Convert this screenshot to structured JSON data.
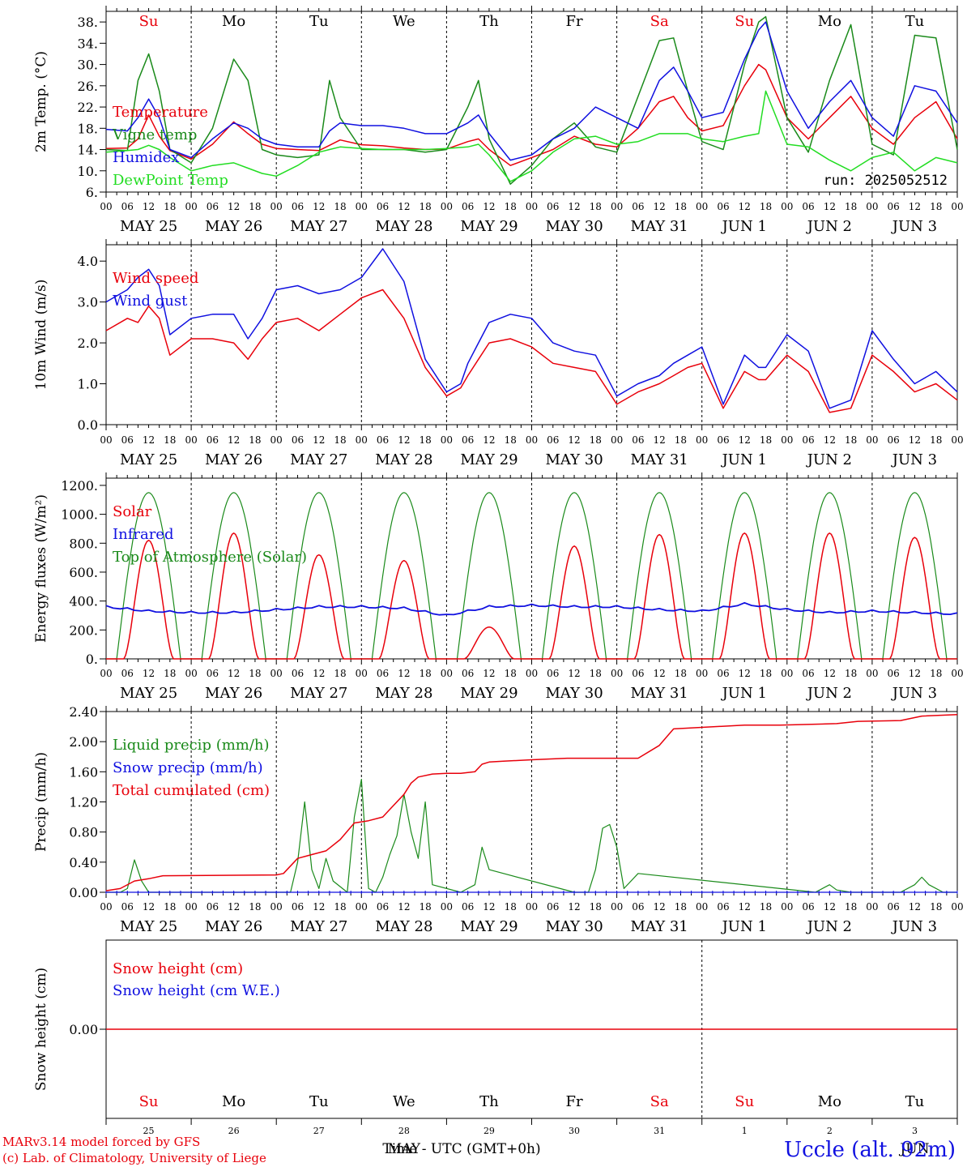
{
  "day_abbr": [
    "Su",
    "Mo",
    "Tu",
    "We",
    "Th",
    "Fr",
    "Sa",
    "Su",
    "Mo",
    "Tu"
  ],
  "day_abbr_colors": [
    "#e8000b",
    "#000000",
    "#000000",
    "#000000",
    "#000000",
    "#000000",
    "#e8000b",
    "#e8000b",
    "#000000",
    "#000000"
  ],
  "date_labels": [
    "MAY 25",
    "MAY 26",
    "MAY 27",
    "MAY 28",
    "MAY 29",
    "MAY 30",
    "MAY 31",
    "JUN  1",
    "JUN  2",
    "JUN  3"
  ],
  "hour_labels": [
    "00",
    "06",
    "12",
    "18"
  ],
  "hour_label_end": "00",
  "bottom_day_numbers": [
    "25",
    "26",
    "27",
    "28",
    "29",
    "30",
    "31",
    "1",
    "2",
    "3"
  ],
  "bottom_month_labels": {
    "may": "MAY",
    "jun": "JUN"
  },
  "xaxis_title": "Time - UTC (GMT+0h)",
  "footer": {
    "line1": "MARv3.14 model forced by GFS",
    "line2": "(c) Lab. of Climatology, University of Liege",
    "station": "Uccle (alt. 92m)"
  },
  "colors": {
    "red": "#e8000b",
    "green": "#1a8a1a",
    "blue": "#1010e0",
    "lightgreen": "#22dd22",
    "black": "#000000"
  },
  "chart_data": [
    {
      "type": "line",
      "ylabel": "2m Temp. (°C)",
      "ylim": [
        6,
        40
      ],
      "yticks": [
        6,
        10,
        14,
        18,
        22,
        26,
        30,
        34,
        38
      ],
      "ytick_labels": [
        "6.",
        "10.",
        "14.",
        "18.",
        "22.",
        "26.",
        "30.",
        "34.",
        "38."
      ],
      "run_label": "run: 2025052512",
      "x": [
        0,
        6,
        9,
        12,
        15,
        18,
        24,
        30,
        36,
        40,
        44,
        48,
        54,
        60,
        63,
        66,
        72,
        78,
        84,
        90,
        96,
        102,
        105,
        108,
        114,
        120,
        126,
        132,
        138,
        144,
        150,
        156,
        160,
        164,
        168,
        174,
        180,
        184,
        186,
        192,
        198,
        204,
        210,
        216,
        222,
        228,
        234,
        240
      ],
      "series": [
        {
          "name": "Temperature",
          "color": "#e8000b",
          "values": [
            14.2,
            14.3,
            16.0,
            20.5,
            16.5,
            13.8,
            12.2,
            15.0,
            19.2,
            17.0,
            15.0,
            14.2,
            14.0,
            13.8,
            14.8,
            15.8,
            14.9,
            14.7,
            14.3,
            14.0,
            14.1,
            15.5,
            16.0,
            14.0,
            11.0,
            12.5,
            14.0,
            16.5,
            15.0,
            14.5,
            18.0,
            23.0,
            24.0,
            20.0,
            17.5,
            18.5,
            26.0,
            30.0,
            29.0,
            20.0,
            16.0,
            20.0,
            24.0,
            18.0,
            15.0,
            20.0,
            23.0,
            16.0
          ]
        },
        {
          "name": "Vigne temp",
          "color": "#1a8a1a",
          "values": [
            14.0,
            13.8,
            27.0,
            32.0,
            25.0,
            14.0,
            11.5,
            18.0,
            31.0,
            27.0,
            14.0,
            13.0,
            12.5,
            13.0,
            27.0,
            20.0,
            14.0,
            14.0,
            14.0,
            13.5,
            14.0,
            22.0,
            27.0,
            16.0,
            7.5,
            11.0,
            16.0,
            19.0,
            14.5,
            13.5,
            24.0,
            34.5,
            35.0,
            25.0,
            15.5,
            14.0,
            30.0,
            38.0,
            39.0,
            20.0,
            13.5,
            27.0,
            37.5,
            15.0,
            13.0,
            35.5,
            35.0,
            14.0
          ]
        },
        {
          "name": "Humidex",
          "color": "#1010e0",
          "values": [
            17.8,
            17.5,
            20.0,
            23.5,
            20.0,
            14.0,
            12.5,
            16.0,
            19.0,
            18.0,
            16.0,
            15.0,
            14.5,
            14.5,
            17.5,
            19.0,
            18.5,
            18.5,
            18.0,
            17.0,
            17.0,
            19.0,
            20.5,
            17.0,
            12.0,
            13.0,
            16.0,
            18.0,
            22.0,
            20.0,
            18.0,
            27.0,
            29.5,
            25.0,
            20.0,
            21.0,
            31.0,
            36.5,
            38.0,
            25.0,
            18.0,
            23.0,
            27.0,
            20.0,
            16.5,
            26.0,
            25.0,
            19.0
          ]
        },
        {
          "name": "DewPoint Temp",
          "color": "#22dd22",
          "values": [
            13.5,
            13.8,
            14.0,
            14.8,
            14.0,
            12.5,
            10.0,
            11.0,
            11.5,
            10.5,
            9.5,
            9.0,
            11.0,
            13.5,
            14.0,
            14.5,
            14.2,
            14.0,
            14.0,
            14.0,
            14.2,
            14.5,
            15.0,
            13.0,
            8.0,
            10.0,
            13.5,
            16.0,
            16.5,
            15.0,
            15.5,
            17.0,
            17.0,
            17.0,
            16.0,
            15.5,
            16.5,
            17.0,
            25.0,
            15.0,
            14.5,
            12.0,
            10.0,
            12.5,
            13.5,
            10.0,
            12.5,
            11.5
          ]
        }
      ]
    },
    {
      "type": "line",
      "ylabel": "10m Wind (m/s)",
      "ylim": [
        0,
        4.4
      ],
      "yticks": [
        0,
        1,
        2,
        3,
        4
      ],
      "ytick_labels": [
        "0.0",
        "1.0",
        "2.0",
        "3.0",
        "4.0"
      ],
      "x": [
        0,
        6,
        9,
        12,
        15,
        18,
        24,
        30,
        36,
        40,
        44,
        48,
        54,
        60,
        66,
        72,
        78,
        84,
        90,
        96,
        100,
        102,
        105,
        108,
        114,
        120,
        126,
        132,
        138,
        144,
        150,
        156,
        160,
        164,
        168,
        174,
        180,
        184,
        186,
        192,
        198,
        204,
        210,
        216,
        222,
        228,
        234,
        240
      ],
      "series": [
        {
          "name": "Wind speed",
          "color": "#e8000b",
          "values": [
            2.3,
            2.6,
            2.5,
            2.9,
            2.6,
            1.7,
            2.1,
            2.1,
            2.0,
            1.6,
            2.1,
            2.5,
            2.6,
            2.3,
            2.7,
            3.1,
            3.3,
            2.6,
            1.4,
            0.7,
            0.9,
            1.2,
            1.6,
            2.0,
            2.1,
            1.9,
            1.5,
            1.4,
            1.3,
            0.5,
            0.8,
            1.0,
            1.2,
            1.4,
            1.5,
            0.4,
            1.3,
            1.1,
            1.1,
            1.7,
            1.3,
            0.3,
            0.4,
            1.7,
            1.3,
            0.8,
            1.0,
            0.6
          ]
        },
        {
          "name": "Wind gust",
          "color": "#1010e0",
          "values": [
            3.0,
            3.3,
            3.6,
            3.8,
            3.4,
            2.2,
            2.6,
            2.7,
            2.7,
            2.1,
            2.6,
            3.3,
            3.4,
            3.2,
            3.3,
            3.6,
            4.3,
            3.5,
            1.6,
            0.8,
            1.0,
            1.5,
            2.0,
            2.5,
            2.7,
            2.6,
            2.0,
            1.8,
            1.7,
            0.7,
            1.0,
            1.2,
            1.5,
            1.7,
            1.9,
            0.5,
            1.7,
            1.4,
            1.4,
            2.2,
            1.8,
            0.4,
            0.6,
            2.3,
            1.6,
            1.0,
            1.3,
            0.8
          ]
        }
      ]
    },
    {
      "type": "line",
      "ylabel": "Energy fluxes (W/m²)",
      "ylim": [
        0,
        1250
      ],
      "yticks": [
        0,
        200,
        400,
        600,
        800,
        1000,
        1200
      ],
      "ytick_labels": [
        "0.",
        "200.",
        "400.",
        "600.",
        "800.",
        "1000.",
        "1200."
      ],
      "solar_day_peaks": [
        820,
        870,
        720,
        680,
        220,
        780,
        860,
        870,
        870,
        840
      ],
      "toa_peak": 1150,
      "series": [
        {
          "name": "Solar",
          "color": "#e8000b"
        },
        {
          "name": "Infrared",
          "color": "#1010e0",
          "x": [
            0,
            12,
            24,
            36,
            48,
            60,
            72,
            84,
            96,
            108,
            120,
            132,
            144,
            156,
            168,
            180,
            192,
            204,
            216,
            228,
            240
          ],
          "values": [
            360,
            330,
            320,
            320,
            340,
            360,
            360,
            350,
            300,
            360,
            370,
            360,
            360,
            340,
            330,
            380,
            340,
            320,
            330,
            320,
            310
          ]
        },
        {
          "name": "Top of Atmosphere (Solar)",
          "color": "#1a8a1a"
        }
      ]
    },
    {
      "type": "line",
      "ylabel": "Precip (mm/h)",
      "ylim": [
        0,
        2.4
      ],
      "yticks": [
        0,
        0.4,
        0.8,
        1.2,
        1.6,
        2.0,
        2.4
      ],
      "ytick_labels": [
        "0.00",
        "0.40",
        "0.80",
        "1.20",
        "1.60",
        "2.00",
        "2.40"
      ],
      "series": [
        {
          "name": "Liquid precip (mm/h)",
          "color": "#1a8a1a",
          "x": [
            0,
            4,
            6,
            8,
            10,
            12,
            14,
            48,
            52,
            54,
            56,
            58,
            60,
            62,
            64,
            68,
            70,
            72,
            74,
            76,
            78,
            80,
            82,
            84,
            86,
            88,
            90,
            92,
            100,
            104,
            106,
            108,
            132,
            136,
            138,
            140,
            142,
            144,
            146,
            150,
            200,
            204,
            206,
            210,
            224,
            228,
            230,
            232,
            236,
            240
          ],
          "values": [
            0,
            0,
            0.05,
            0.43,
            0.15,
            0,
            0,
            0,
            0,
            0.4,
            1.2,
            0.3,
            0.05,
            0.45,
            0.15,
            0,
            1.0,
            1.5,
            0.05,
            0,
            0.2,
            0.5,
            0.75,
            1.3,
            0.8,
            0.45,
            1.2,
            0.1,
            0,
            0.1,
            0.6,
            0.3,
            0,
            0,
            0.3,
            0.85,
            0.9,
            0.6,
            0.05,
            0.25,
            0,
            0.1,
            0.03,
            0,
            0,
            0.1,
            0.2,
            0.1,
            0,
            0
          ]
        },
        {
          "name": "Snow precip (mm/h)",
          "color": "#1010e0",
          "x": [
            0,
            240
          ],
          "values": [
            0,
            0
          ]
        },
        {
          "name": "Total cumulated (cm)",
          "color": "#e8000b",
          "x": [
            0,
            4,
            8,
            12,
            16,
            48,
            50,
            54,
            58,
            62,
            66,
            70,
            74,
            78,
            80,
            84,
            86,
            88,
            92,
            96,
            100,
            104,
            106,
            108,
            112,
            120,
            130,
            150,
            156,
            160,
            180,
            190,
            206,
            212,
            224,
            230,
            240
          ],
          "values": [
            0.02,
            0.05,
            0.15,
            0.18,
            0.22,
            0.23,
            0.25,
            0.45,
            0.5,
            0.55,
            0.7,
            0.92,
            0.95,
            1.0,
            1.1,
            1.3,
            1.45,
            1.53,
            1.57,
            1.58,
            1.58,
            1.6,
            1.7,
            1.73,
            1.74,
            1.76,
            1.78,
            1.78,
            1.95,
            2.17,
            2.22,
            2.22,
            2.24,
            2.27,
            2.28,
            2.34,
            2.36
          ]
        }
      ]
    },
    {
      "type": "line",
      "ylabel": "Snow height (cm)",
      "yticks": [
        0
      ],
      "ytick_labels": [
        "0.00"
      ],
      "series": [
        {
          "name": "Snow height (cm)",
          "color": "#e8000b",
          "x": [
            0,
            240
          ],
          "values": [
            0,
            0
          ]
        },
        {
          "name": "Snow height (cm W.E.)",
          "color": "#1010e0"
        }
      ]
    }
  ]
}
